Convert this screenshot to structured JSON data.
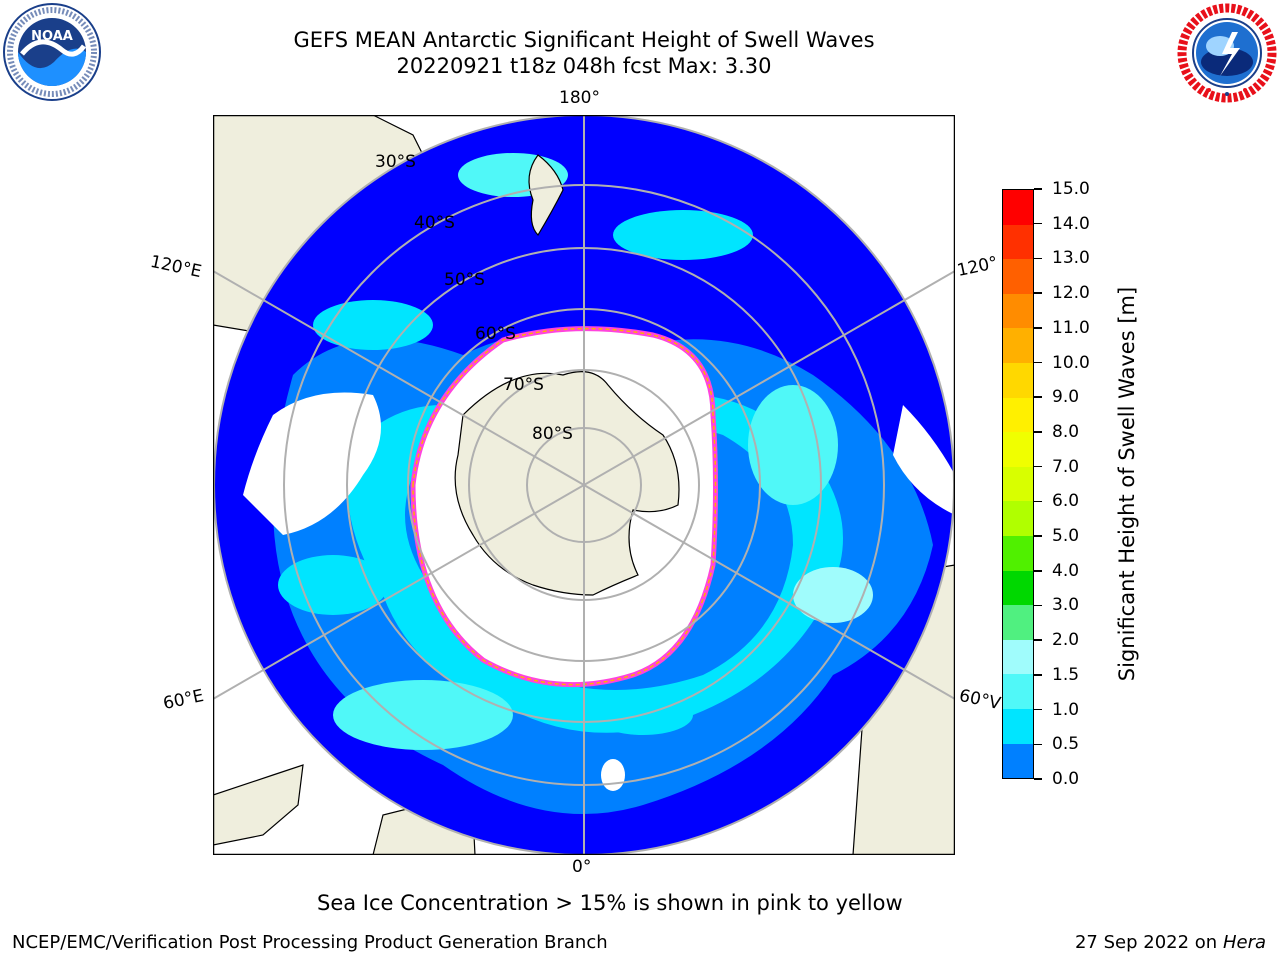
{
  "header": {
    "title_line1": "GEFS MEAN Antarctic Significant Height of Swell Waves",
    "title_line2": "20220921 t18z 048h fcst   Max: 3.30"
  },
  "logos": {
    "left": {
      "name": "noaa-logo",
      "text": "NOAA",
      "ring_text": "NATIONAL OCEANIC AND ATMOSPHERIC ADMINISTRATION · U.S. DEPARTMENT OF COMMERCE"
    },
    "right": {
      "name": "nws-logo",
      "ring_text": "NATIONAL WEATHER SERVICE"
    }
  },
  "map": {
    "projection": "south-polar-stereographic",
    "longitude_labels": {
      "top": "180°",
      "bottom": "0°",
      "upper_left": "120°E",
      "upper_right": "120°",
      "lower_left": "60°E",
      "lower_right": "60°V"
    },
    "latitude_labels": [
      "30°S",
      "40°S",
      "50°S",
      "60°S",
      "70°S",
      "80°S"
    ],
    "colors": {
      "land": "#efeedd",
      "ocean_low": "#0000ff",
      "ocean_mid": "#0080ff",
      "ocean_high": "#00e5ff",
      "ocean_peak": "#7ff6f6",
      "ice": "#ffffff",
      "ice_edge": "#ff44dd",
      "ice_edge_inner": "#ffb000",
      "grid": "#b0b0b0"
    }
  },
  "colorbar": {
    "label": "Significant Height of Swell Waves [m]",
    "ticks": [
      "15.0",
      "14.0",
      "13.0",
      "12.0",
      "11.0",
      "10.0",
      "9.0",
      "8.0",
      "7.0",
      "6.0",
      "5.0",
      "4.0",
      "3.0",
      "2.0",
      "1.5",
      "1.0",
      "0.5",
      "0.0"
    ],
    "colors": [
      "#ff0000",
      "#ff3000",
      "#ff6000",
      "#ff8c00",
      "#ffb000",
      "#ffd800",
      "#fff000",
      "#f0ff00",
      "#d8ff00",
      "#b0ff00",
      "#50f000",
      "#00d800",
      "#50f080",
      "#a0fcfc",
      "#50f8f8",
      "#00e5ff",
      "#0080ff",
      "#0000ff"
    ]
  },
  "note": "Sea Ice Concentration > 15% is shown in pink to yellow",
  "footer": {
    "left": "NCEP/EMC/Verification Post Processing Product Generation Branch",
    "right_date": "27 Sep 2022 on",
    "right_machine": "Hera"
  }
}
